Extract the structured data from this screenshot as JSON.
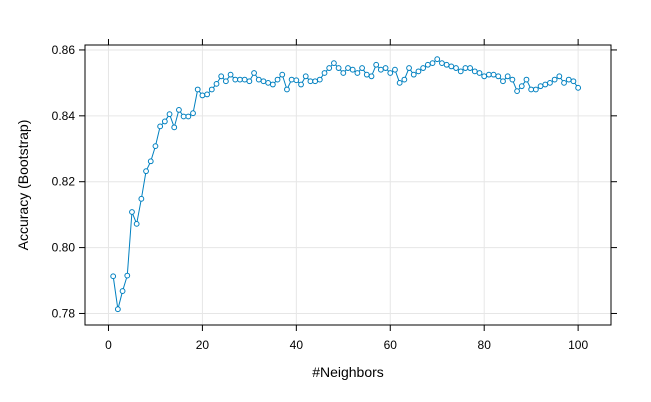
{
  "chart_data": {
    "type": "line",
    "title": "",
    "xlabel": "#Neighbors",
    "ylabel": "Accuracy (Bootstrap)",
    "xlim": [
      -5,
      107
    ],
    "ylim": [
      0.7765,
      0.8615
    ],
    "xticks": [
      0,
      20,
      40,
      60,
      80,
      100
    ],
    "yticks": [
      0.78,
      0.8,
      0.82,
      0.84,
      0.86
    ],
    "xtick_labels": [
      "0",
      "20",
      "40",
      "60",
      "80",
      "100"
    ],
    "ytick_labels": [
      "0.78",
      "0.80",
      "0.82",
      "0.84",
      "0.86"
    ],
    "grid": true,
    "marker": "open-circle",
    "colors": {
      "series": "#0080c0",
      "grid": "#e6e6e6",
      "frame": "#000000"
    },
    "x": [
      1,
      2,
      3,
      4,
      5,
      6,
      7,
      8,
      9,
      10,
      11,
      12,
      13,
      14,
      15,
      16,
      17,
      18,
      19,
      20,
      21,
      22,
      23,
      24,
      25,
      26,
      27,
      28,
      29,
      30,
      31,
      32,
      33,
      34,
      35,
      36,
      37,
      38,
      39,
      40,
      41,
      42,
      43,
      44,
      45,
      46,
      47,
      48,
      49,
      50,
      51,
      52,
      53,
      54,
      55,
      56,
      57,
      58,
      59,
      60,
      61,
      62,
      63,
      64,
      65,
      66,
      67,
      68,
      69,
      70,
      71,
      72,
      73,
      74,
      75,
      76,
      77,
      78,
      79,
      80,
      81,
      82,
      83,
      84,
      85,
      86,
      87,
      88,
      89,
      90,
      91,
      92,
      93,
      94,
      95,
      96,
      97,
      98,
      99,
      100
    ],
    "series": [
      {
        "values": [
          0.7913,
          0.7813,
          0.7868,
          0.7915,
          0.8108,
          0.8072,
          0.8148,
          0.8232,
          0.8262,
          0.8308,
          0.8368,
          0.8383,
          0.8405,
          0.8365,
          0.8418,
          0.8398,
          0.8398,
          0.8408,
          0.848,
          0.8462,
          0.8465,
          0.848,
          0.8497,
          0.852,
          0.8505,
          0.8525,
          0.851,
          0.851,
          0.851,
          0.8505,
          0.853,
          0.851,
          0.8505,
          0.85,
          0.8495,
          0.851,
          0.8525,
          0.848,
          0.851,
          0.8508,
          0.8495,
          0.852,
          0.8505,
          0.8505,
          0.851,
          0.853,
          0.8545,
          0.856,
          0.8545,
          0.853,
          0.8545,
          0.854,
          0.853,
          0.8545,
          0.8525,
          0.852,
          0.8555,
          0.854,
          0.8545,
          0.853,
          0.854,
          0.85,
          0.851,
          0.8545,
          0.8525,
          0.8535,
          0.8545,
          0.8555,
          0.856,
          0.8572,
          0.856,
          0.8555,
          0.855,
          0.8545,
          0.8535,
          0.8545,
          0.8545,
          0.8535,
          0.853,
          0.852,
          0.8525,
          0.8525,
          0.852,
          0.8505,
          0.852,
          0.851,
          0.8475,
          0.849,
          0.851,
          0.848,
          0.848,
          0.849,
          0.8495,
          0.85,
          0.851,
          0.852,
          0.85,
          0.851,
          0.8505,
          0.8485
        ]
      }
    ]
  }
}
